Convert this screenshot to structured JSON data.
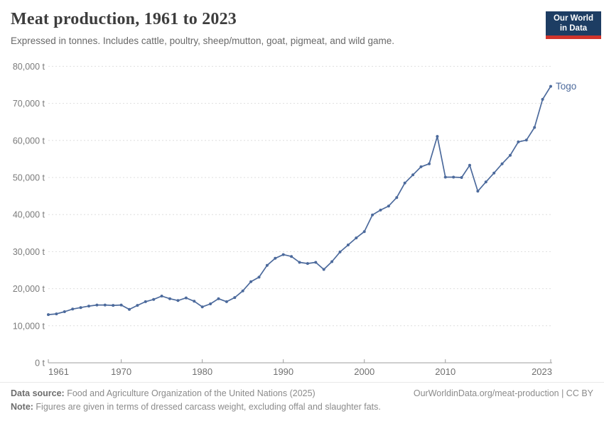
{
  "header": {
    "title": "Meat production, 1961 to 2023",
    "subtitle": "Expressed in tonnes. Includes cattle, poultry, sheep/mutton, goat, pigmeat, and wild game.",
    "logo": {
      "line1": "Our World",
      "line2": "in Data",
      "bg_color": "#1d3d63",
      "accent_color": "#d1342c"
    }
  },
  "chart_data": {
    "type": "line",
    "title": "Meat production, 1961 to 2023",
    "unit": "t",
    "xlabel": "",
    "ylabel": "",
    "ylim": [
      0,
      80000
    ],
    "y_ticks": [
      0,
      10000,
      20000,
      30000,
      40000,
      50000,
      60000,
      70000,
      80000
    ],
    "x_ticks": [
      1961,
      1970,
      1980,
      1990,
      2000,
      2010,
      2023
    ],
    "grid": "dashed-horizontal",
    "legend_position": "end-of-line-label",
    "x": [
      1961,
      1962,
      1963,
      1964,
      1965,
      1966,
      1967,
      1968,
      1969,
      1970,
      1971,
      1972,
      1973,
      1974,
      1975,
      1976,
      1977,
      1978,
      1979,
      1980,
      1981,
      1982,
      1983,
      1984,
      1985,
      1986,
      1987,
      1988,
      1989,
      1990,
      1991,
      1992,
      1993,
      1994,
      1995,
      1996,
      1997,
      1998,
      1999,
      2000,
      2001,
      2002,
      2003,
      2004,
      2005,
      2006,
      2007,
      2008,
      2009,
      2010,
      2011,
      2012,
      2013,
      2014,
      2015,
      2016,
      2017,
      2018,
      2019,
      2020,
      2021,
      2022,
      2023
    ],
    "series": [
      {
        "name": "Togo",
        "color": "#4c6a9c",
        "values": [
          13000,
          13200,
          13800,
          14500,
          14900,
          15300,
          15600,
          15600,
          15500,
          15600,
          14400,
          15500,
          16500,
          17100,
          18000,
          17300,
          16800,
          17500,
          16600,
          15100,
          15900,
          17300,
          16500,
          17600,
          19400,
          21900,
          23100,
          26300,
          28200,
          29200,
          28700,
          27100,
          26800,
          27100,
          25200,
          27300,
          29900,
          31800,
          33700,
          35400,
          39900,
          41200,
          42300,
          44600,
          48500,
          50700,
          52900,
          53700,
          61100,
          50100,
          50100,
          50000,
          53300,
          46300,
          48800,
          51200,
          53700,
          56000,
          59600,
          60100,
          63500,
          71100,
          74600
        ]
      }
    ]
  },
  "footer": {
    "datasource_label": "Data source:",
    "datasource_text": " Food and Agriculture Organization of the United Nations (2025)",
    "note_label": "Note:",
    "note_text": " Figures are given in terms of dressed carcass weight, excluding offal and slaughter fats.",
    "link": "OurWorldinData.org/meat-production | CC BY"
  }
}
